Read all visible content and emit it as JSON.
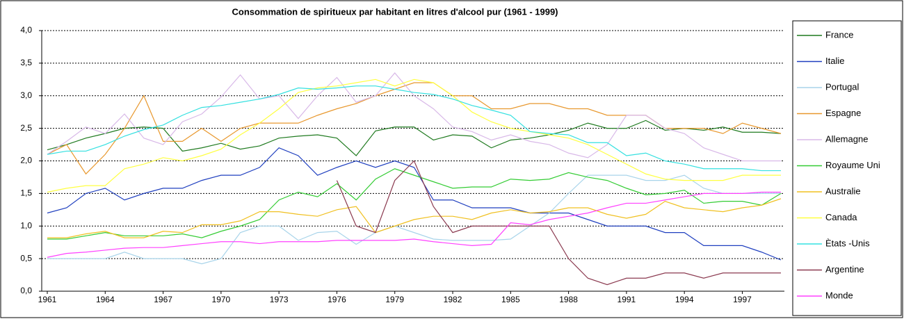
{
  "chart_data": {
    "type": "line",
    "title": "Consommation de spiritueux par habitant en litres d'alcool pur (1961 - 1999)",
    "x": [
      1961,
      1962,
      1963,
      1964,
      1965,
      1966,
      1967,
      1968,
      1969,
      1970,
      1971,
      1972,
      1973,
      1974,
      1975,
      1976,
      1977,
      1978,
      1979,
      1980,
      1981,
      1982,
      1983,
      1984,
      1985,
      1986,
      1987,
      1988,
      1989,
      1990,
      1991,
      1992,
      1993,
      1994,
      1995,
      1996,
      1997,
      1998,
      1999
    ],
    "xlim": [
      1961,
      1999
    ],
    "xticks": [
      1961,
      1964,
      1967,
      1970,
      1973,
      1976,
      1979,
      1982,
      1985,
      1988,
      1991,
      1994,
      1997
    ],
    "ylim": [
      0,
      4
    ],
    "yticks": [
      {
        "value": 0,
        "label": "0,0"
      },
      {
        "value": 0.5,
        "label": "0,5"
      },
      {
        "value": 1,
        "label": "1,0"
      },
      {
        "value": 1.5,
        "label": "1,5"
      },
      {
        "value": 2,
        "label": "2,0"
      },
      {
        "value": 2.5,
        "label": "2,5"
      },
      {
        "value": 3,
        "label": "3,0"
      },
      {
        "value": 3.5,
        "label": "3,5"
      },
      {
        "value": 4,
        "label": "4,0"
      }
    ],
    "grid": true,
    "legend": "right",
    "series": [
      {
        "name": "France",
        "color": "#1f7a1f",
        "values": [
          2.17,
          2.25,
          2.35,
          2.42,
          2.5,
          2.52,
          2.5,
          2.15,
          2.2,
          2.27,
          2.18,
          2.23,
          2.35,
          2.38,
          2.4,
          2.35,
          2.08,
          2.46,
          2.52,
          2.52,
          2.32,
          2.4,
          2.38,
          2.2,
          2.32,
          2.35,
          2.4,
          2.47,
          2.58,
          2.5,
          2.5,
          2.62,
          2.47,
          2.5,
          2.47,
          2.52,
          2.44,
          2.44,
          2.42
        ]
      },
      {
        "name": "Italie",
        "color": "#1f3fbf",
        "values": [
          1.2,
          1.28,
          1.5,
          1.58,
          1.4,
          1.5,
          1.58,
          1.58,
          1.7,
          1.78,
          1.78,
          1.9,
          2.2,
          2.08,
          1.78,
          1.9,
          2.0,
          1.9,
          2.0,
          1.9,
          1.4,
          1.4,
          1.28,
          1.28,
          1.28,
          1.2,
          1.2,
          1.2,
          1.1,
          1.0,
          1.0,
          1.0,
          0.9,
          0.9,
          0.7,
          0.7,
          0.7,
          0.6,
          0.48
        ]
      },
      {
        "name": "Portugal",
        "color": "#a8d4ea",
        "values": [
          0.5,
          0.5,
          0.5,
          0.5,
          0.6,
          0.5,
          0.5,
          0.5,
          0.42,
          0.5,
          0.9,
          1.0,
          1.0,
          0.78,
          0.9,
          0.92,
          0.72,
          0.9,
          1.0,
          0.9,
          0.8,
          0.78,
          0.78,
          0.78,
          0.8,
          1.0,
          1.2,
          1.5,
          1.78,
          1.78,
          1.78,
          1.7,
          1.7,
          1.78,
          1.58,
          1.5,
          1.5,
          1.5,
          1.5
        ]
      },
      {
        "name": "Espagne",
        "color": "#e8982e",
        "values": [
          2.1,
          2.25,
          1.8,
          2.1,
          2.5,
          3.0,
          2.3,
          2.3,
          2.5,
          2.3,
          2.5,
          2.58,
          2.58,
          2.58,
          2.7,
          2.8,
          2.88,
          3.0,
          3.1,
          3.2,
          3.2,
          3.0,
          3.0,
          2.8,
          2.8,
          2.88,
          2.88,
          2.8,
          2.8,
          2.7,
          2.7,
          2.7,
          2.5,
          2.5,
          2.5,
          2.42,
          2.58,
          2.5,
          2.42
        ]
      },
      {
        "name": "Allemagne",
        "color": "#d8b8e8",
        "values": [
          2.1,
          2.3,
          2.52,
          2.42,
          2.72,
          2.35,
          2.25,
          2.6,
          2.72,
          2.98,
          3.32,
          2.95,
          3.0,
          2.65,
          3.0,
          3.28,
          2.9,
          3.0,
          3.35,
          3.0,
          2.8,
          2.52,
          2.45,
          2.32,
          2.4,
          2.3,
          2.25,
          2.12,
          2.05,
          2.25,
          2.7,
          2.7,
          2.5,
          2.42,
          2.2,
          2.1,
          2.0,
          2.0,
          2.0
        ]
      },
      {
        "name": "Royaume Uni",
        "color": "#33cc33",
        "values": [
          0.8,
          0.8,
          0.85,
          0.9,
          0.85,
          0.85,
          0.85,
          0.88,
          0.82,
          0.92,
          1.0,
          1.1,
          1.4,
          1.52,
          1.45,
          1.65,
          1.4,
          1.72,
          1.88,
          1.78,
          1.68,
          1.58,
          1.6,
          1.6,
          1.72,
          1.7,
          1.72,
          1.82,
          1.75,
          1.7,
          1.58,
          1.48,
          1.5,
          1.55,
          1.35,
          1.38,
          1.38,
          1.32,
          1.5
        ]
      },
      {
        "name": "Australie",
        "color": "#f0c020",
        "values": [
          0.82,
          0.82,
          0.88,
          0.92,
          0.82,
          0.82,
          0.92,
          0.9,
          1.02,
          1.02,
          1.08,
          1.22,
          1.22,
          1.18,
          1.15,
          1.25,
          1.3,
          0.9,
          1.0,
          1.1,
          1.15,
          1.15,
          1.1,
          1.2,
          1.25,
          1.2,
          1.22,
          1.28,
          1.28,
          1.18,
          1.12,
          1.18,
          1.38,
          1.28,
          1.25,
          1.22,
          1.28,
          1.32,
          1.42
        ]
      },
      {
        "name": "Canada",
        "color": "#ffff40",
        "values": [
          1.52,
          1.58,
          1.62,
          1.62,
          1.88,
          1.95,
          2.05,
          2.0,
          2.08,
          2.18,
          2.4,
          2.58,
          2.8,
          3.05,
          3.12,
          3.15,
          3.2,
          3.25,
          3.15,
          3.25,
          3.2,
          3.0,
          2.75,
          2.6,
          2.5,
          2.45,
          2.4,
          2.35,
          2.25,
          2.1,
          1.95,
          1.8,
          1.72,
          1.7,
          1.7,
          1.7,
          1.78,
          1.78,
          1.78
        ]
      },
      {
        "name": "Ètats -Unis",
        "color": "#33e0e0",
        "values": [
          2.1,
          2.15,
          2.15,
          2.25,
          2.38,
          2.48,
          2.55,
          2.7,
          2.82,
          2.85,
          2.9,
          2.95,
          3.02,
          3.12,
          3.1,
          3.12,
          3.15,
          3.15,
          3.1,
          3.05,
          3.02,
          2.95,
          2.85,
          2.78,
          2.7,
          2.45,
          2.42,
          2.4,
          2.28,
          2.28,
          2.08,
          2.12,
          2.0,
          1.95,
          1.88,
          1.88,
          1.88,
          1.85,
          1.85
        ]
      },
      {
        "name": "Argentine",
        "color": "#8b3a50",
        "values": [
          null,
          null,
          null,
          null,
          null,
          null,
          null,
          null,
          null,
          null,
          null,
          null,
          null,
          null,
          null,
          1.7,
          1.0,
          0.9,
          1.7,
          2.0,
          1.3,
          0.9,
          1.0,
          1.0,
          1.0,
          1.0,
          1.0,
          0.5,
          0.2,
          0.1,
          0.2,
          0.2,
          0.28,
          0.28,
          0.2,
          0.28,
          0.28,
          0.28,
          0.28
        ]
      },
      {
        "name": "Monde",
        "color": "#ff40ff",
        "values": [
          0.52,
          0.58,
          0.6,
          0.63,
          0.66,
          0.67,
          0.67,
          0.7,
          0.73,
          0.76,
          0.76,
          0.73,
          0.76,
          0.76,
          0.76,
          0.78,
          0.78,
          0.78,
          0.78,
          0.8,
          0.76,
          0.73,
          0.7,
          0.72,
          1.05,
          1.02,
          1.1,
          1.15,
          1.2,
          1.28,
          1.35,
          1.35,
          1.4,
          1.45,
          1.5,
          1.5,
          1.5,
          1.52,
          1.52
        ]
      }
    ]
  }
}
